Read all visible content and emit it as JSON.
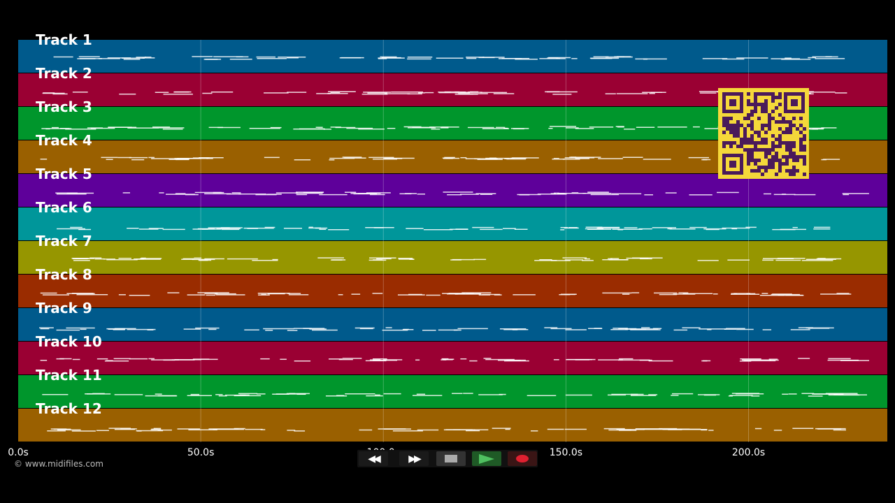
{
  "tracks": [
    {
      "label": "Track 1",
      "color": "#005a8c"
    },
    {
      "label": "Track 2",
      "color": "#9a0033"
    },
    {
      "label": "Track 3",
      "color": "#00962c"
    },
    {
      "label": "Track 4",
      "color": "#9a6000"
    },
    {
      "label": "Track 5",
      "color": "#5e009a"
    },
    {
      "label": "Track 6",
      "color": "#00969a"
    },
    {
      "label": "Track 7",
      "color": "#969600"
    },
    {
      "label": "Track 8",
      "color": "#9a2c00"
    },
    {
      "label": "Track 9",
      "color": "#005a8c"
    },
    {
      "label": "Track 10",
      "color": "#9a0033"
    },
    {
      "label": "Track 11",
      "color": "#00962c"
    },
    {
      "label": "Track 12",
      "color": "#9a6000"
    }
  ],
  "timeline": {
    "ticks": [
      "0.0s",
      "50.0s",
      "100.0s",
      "150.0s",
      "200.0s"
    ],
    "tick_seconds": [
      0,
      50,
      100,
      150,
      200
    ],
    "max_seconds": 238
  },
  "copyright": "© www.midifiles.com",
  "transport": {
    "rewind_icon": "rewind-icon",
    "forward_icon": "fast-forward-icon",
    "stop_icon": "stop-icon",
    "play_icon": "play-icon",
    "record_icon": "record-icon",
    "play_color": "#1f8a2e",
    "record_color": "#e02030"
  },
  "qr": {
    "name": "qr-code-icon",
    "color": "#f5d83a",
    "dark": "#4a1a5a"
  }
}
